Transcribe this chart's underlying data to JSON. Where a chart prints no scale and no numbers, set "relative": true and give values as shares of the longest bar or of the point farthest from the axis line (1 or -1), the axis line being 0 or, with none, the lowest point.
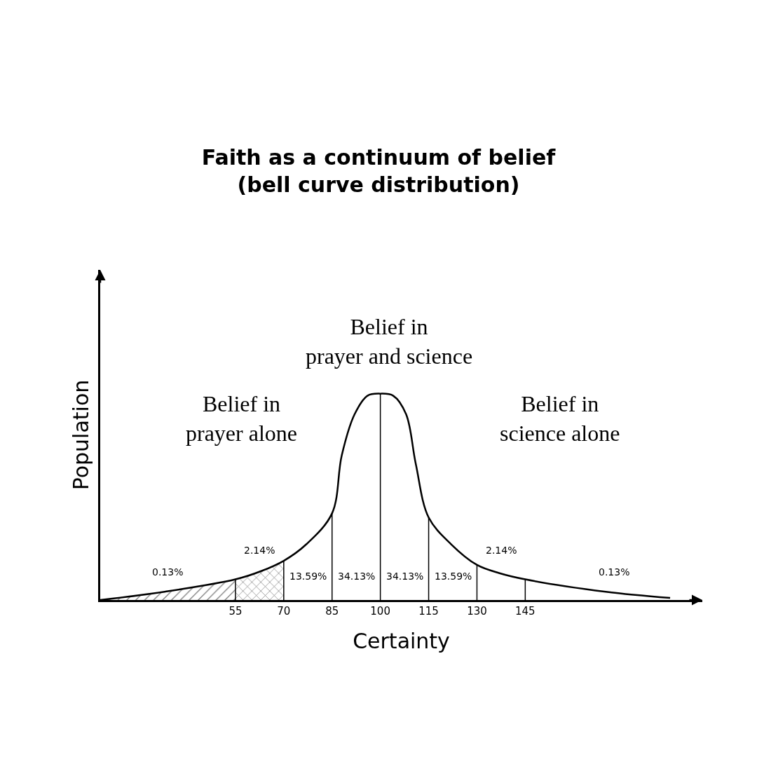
{
  "chart_data": {
    "type": "line",
    "relative": true,
    "title": "Faith as a continuum of belief\n(bell curve distribution)",
    "xlabel": "Certainty",
    "ylabel": "Population",
    "xlim": [
      13,
      200
    ],
    "xticks": [
      55,
      70,
      85,
      100,
      115,
      130,
      145
    ],
    "marker": "none",
    "line_style": "solid",
    "series": [
      {
        "color": "#000000",
        "x": [
          13,
          33,
          55,
          63,
          70,
          77,
          85,
          88,
          92,
          96,
          100,
          104,
          108,
          111,
          115,
          122,
          130,
          137,
          145,
          170,
          190
        ],
        "values": [
          0,
          0.04,
          0.1,
          0.14,
          0.19,
          0.27,
          0.42,
          0.7,
          0.9,
          0.99,
          1,
          0.99,
          0.9,
          0.66,
          0.4,
          0.27,
          0.17,
          0.13,
          0.1,
          0.04,
          0.01
        ]
      },
      {
        "type": "area",
        "color": "#000000",
        "x": [
          13,
          33,
          55
        ],
        "values": [
          0,
          0.04,
          0.1
        ]
      },
      {
        "type": "area",
        "color": "#000000",
        "x": [
          55,
          63,
          70
        ],
        "values": [
          0.1,
          0.14,
          0.19
        ]
      }
    ],
    "ref_lines": [
      {
        "axis": "x",
        "value": 55
      },
      {
        "axis": "x",
        "value": 70
      },
      {
        "axis": "x",
        "value": 85
      },
      {
        "axis": "x",
        "value": 100
      },
      {
        "axis": "x",
        "value": 115
      },
      {
        "axis": "x",
        "value": 130
      },
      {
        "axis": "x",
        "value": 145
      }
    ],
    "annotations": [
      "0.13%",
      "2.14%",
      "13.59%",
      "34.13%",
      "34.13%",
      "13.59%",
      "2.14%",
      "0.13%",
      "Belief in\nprayer alone",
      "Belief in\nscience alone",
      "Belief in\nprayer and science"
    ]
  }
}
